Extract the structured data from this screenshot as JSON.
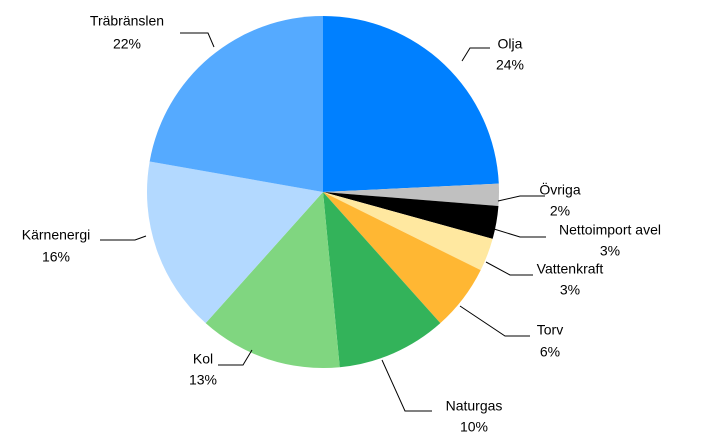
{
  "chart_data": {
    "type": "pie",
    "categories": [
      "Olja",
      "Övriga",
      "Nettoimport avel",
      "Vattenkraft",
      "Torv",
      "Naturgas",
      "Kol",
      "Kärnenergi",
      "Träbränslen"
    ],
    "values": [
      24,
      2,
      3,
      3,
      6,
      10,
      13,
      16,
      22
    ],
    "value_labels": [
      "24%",
      "2%",
      "3%",
      "3%",
      "6%",
      "10%",
      "13%",
      "16%",
      "22%"
    ],
    "colors": [
      "#0080ff",
      "#c0c0c0",
      "#000000",
      "#ffe8a0",
      "#ffb733",
      "#33b35a",
      "#80d680",
      "#b3d9ff",
      "#55aaff"
    ]
  }
}
